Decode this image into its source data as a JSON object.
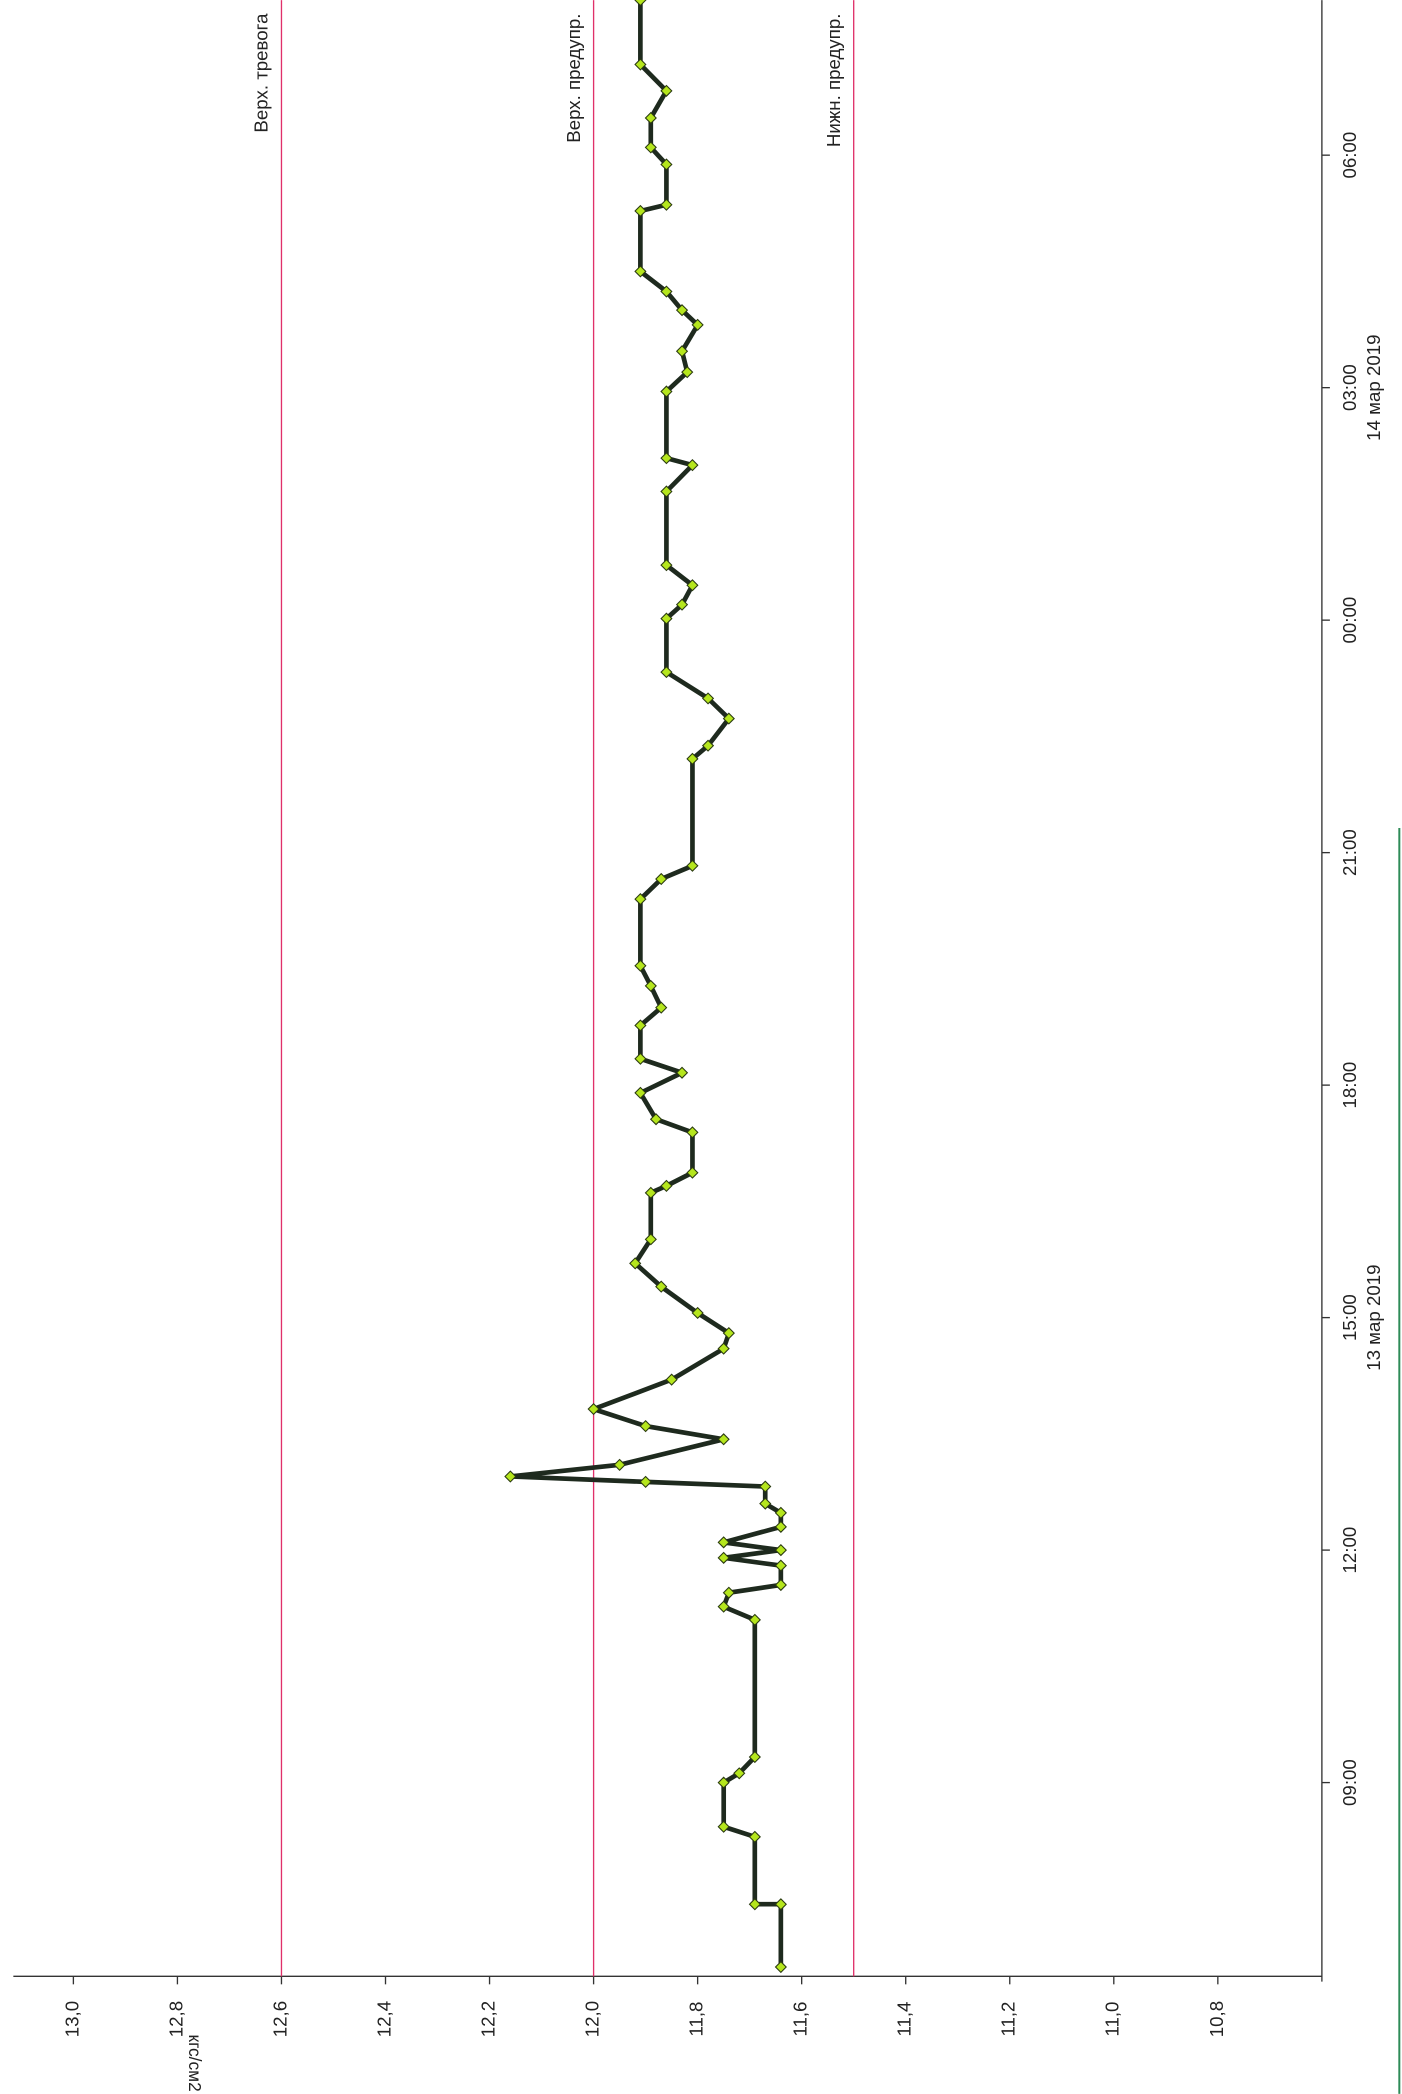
{
  "chart_data": {
    "type": "line",
    "y_label": "кгс/см2",
    "annotations": [
      {
        "text": "13 мар 2019",
        "x": 15
      },
      {
        "text": "14 мар 2019",
        "x": 27
      }
    ],
    "thresholds": [
      {
        "label": "Верх. тревога",
        "value": 12.6,
        "color": "#e0306a"
      },
      {
        "label": "Верх. предупр.",
        "value": 12.0,
        "color": "#e0306a"
      },
      {
        "label": "Нижн. предупр.",
        "value": 11.5,
        "color": "#e0306a"
      }
    ],
    "xlim": [
      6.5,
      32.0
    ],
    "xticks": [
      {
        "value": 9,
        "label": "09:00"
      },
      {
        "value": 12,
        "label": "12:00"
      },
      {
        "value": 15,
        "label": "15:00"
      },
      {
        "value": 18,
        "label": "18:00"
      },
      {
        "value": 21,
        "label": "21:00"
      },
      {
        "value": 24,
        "label": "00:00"
      },
      {
        "value": 27,
        "label": "03:00"
      },
      {
        "value": 30,
        "label": "06:00"
      }
    ],
    "ylim": [
      10.6,
      13.1
    ],
    "yticks": [
      {
        "value": 13.0,
        "label": "13,0"
      },
      {
        "value": 12.8,
        "label": "12,8"
      },
      {
        "value": 12.6,
        "label": "12,6"
      },
      {
        "value": 12.4,
        "label": "12,4"
      },
      {
        "value": 12.2,
        "label": "12,2"
      },
      {
        "value": 12.0,
        "label": "12,0"
      },
      {
        "value": 11.8,
        "label": "11,8"
      },
      {
        "value": 11.6,
        "label": "11,6"
      },
      {
        "value": 11.4,
        "label": "11,4"
      },
      {
        "value": 11.2,
        "label": "11,2"
      },
      {
        "value": 11.0,
        "label": "11,0"
      },
      {
        "value": 10.8,
        "label": "10,8"
      }
    ],
    "series": [
      {
        "color": "#1e2a1e",
        "marker_color": "#b5e61d",
        "x": [
          6.62,
          7.43,
          7.43,
          8.3,
          8.43,
          9.0,
          9.12,
          9.33,
          11.1,
          11.27,
          11.45,
          11.55,
          11.8,
          11.9,
          12.0,
          12.1,
          12.3,
          12.48,
          12.6,
          12.82,
          12.88,
          12.95,
          13.1,
          13.43,
          13.6,
          13.82,
          14.2,
          14.6,
          14.8,
          15.06,
          15.4,
          15.7,
          16.01,
          16.61,
          16.7,
          16.87,
          17.39,
          17.56,
          17.9,
          18.16,
          18.34,
          18.77,
          19.0,
          19.28,
          19.54,
          20.4,
          20.66,
          20.83,
          22.21,
          22.38,
          22.73,
          22.99,
          23.33,
          24.02,
          24.2,
          24.45,
          24.71,
          25.66,
          26.0,
          26.09,
          26.95,
          27.2,
          27.47,
          27.81,
          28.0,
          28.24,
          28.5,
          29.28,
          29.36,
          29.88,
          30.1,
          30.48,
          30.83,
          31.17,
          32.0
        ],
        "values": [
          11.64,
          11.64,
          11.69,
          11.69,
          11.75,
          11.75,
          11.72,
          11.69,
          11.69,
          11.75,
          11.74,
          11.64,
          11.64,
          11.75,
          11.64,
          11.75,
          11.64,
          11.64,
          11.67,
          11.67,
          11.9,
          12.16,
          11.95,
          11.75,
          11.9,
          12.0,
          11.85,
          11.75,
          11.74,
          11.8,
          11.87,
          11.92,
          11.89,
          11.89,
          11.86,
          11.81,
          11.81,
          11.88,
          11.91,
          11.83,
          11.91,
          11.91,
          11.87,
          11.89,
          11.91,
          11.91,
          11.87,
          11.81,
          11.81,
          11.78,
          11.74,
          11.78,
          11.86,
          11.86,
          11.83,
          11.81,
          11.86,
          11.86,
          11.81,
          11.86,
          11.86,
          11.82,
          11.83,
          11.8,
          11.83,
          11.86,
          11.91,
          11.91,
          11.86,
          11.86,
          11.89,
          11.89,
          11.86,
          11.91,
          11.91
        ]
      }
    ]
  }
}
